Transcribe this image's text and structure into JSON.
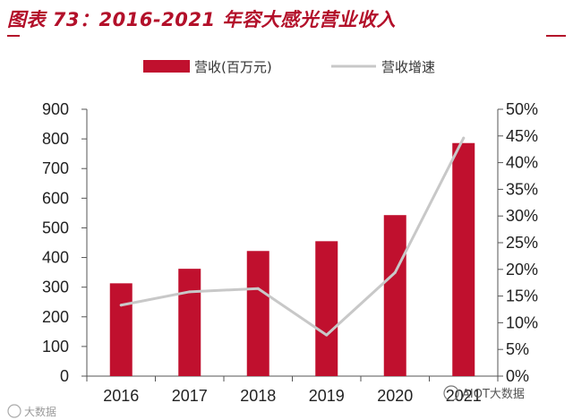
{
  "title": "图表 73：2016-2021 年容大感光营业收入",
  "colors": {
    "bar": "#c0102e",
    "line": "#c8c8c8",
    "title": "#b3102a"
  },
  "chart_data": {
    "type": "bar",
    "categories": [
      "2016",
      "2017",
      "2018",
      "2019",
      "2020",
      "2021"
    ],
    "series": [
      {
        "name": "营收(百万元)",
        "type": "bar",
        "axis": "left",
        "values": [
          313,
          362,
          422,
          455,
          543,
          786
        ]
      },
      {
        "name": "营收增速",
        "type": "line",
        "axis": "right",
        "values": [
          13.3,
          15.8,
          16.4,
          7.7,
          19.4,
          44.6
        ]
      }
    ],
    "ylim": [
      0,
      900
    ],
    "yticks": [
      "0",
      "100",
      "200",
      "300",
      "400",
      "500",
      "600",
      "700",
      "800",
      "900"
    ],
    "y2lim": [
      0,
      50
    ],
    "y2ticks": [
      "0%",
      "5%",
      "10%",
      "15%",
      "20%",
      "25%",
      "30%",
      "35%",
      "40%",
      "45%",
      "50%"
    ],
    "legend": "top",
    "grid": false
  },
  "watermarks": {
    "left": "大数据",
    "right": "AIOT大数据"
  }
}
